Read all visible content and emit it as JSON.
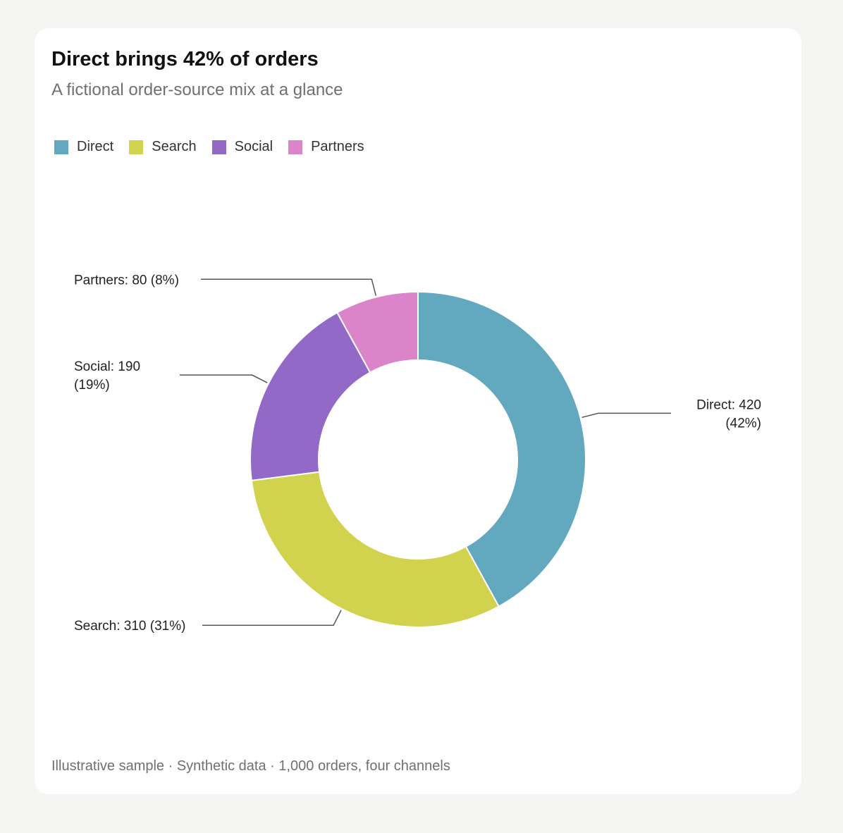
{
  "card": {
    "title": "Direct brings 42% of orders",
    "subtitle": "A fictional order-source mix at a glance",
    "footer": "Illustrative sample · Synthetic data · 1,000 orders, four channels"
  },
  "legend": [
    {
      "label": "Direct",
      "color": "#62a9c0"
    },
    {
      "label": "Search",
      "color": "#d1d34e"
    },
    {
      "label": "Social",
      "color": "#9369c8"
    },
    {
      "label": "Partners",
      "color": "#dc84c9"
    }
  ],
  "chart_data": {
    "type": "pie",
    "variant": "donut",
    "title": "Direct brings 42% of orders",
    "subtitle": "A fictional order-source mix at a glance",
    "legend_position": "top-left",
    "slices": [
      {
        "label": "Direct",
        "value": 420,
        "percent": 42,
        "color": "#62a9c0",
        "label_lines": [
          "Direct: 420",
          "(42%)"
        ]
      },
      {
        "label": "Search",
        "value": 310,
        "percent": 31,
        "color": "#d1d34e",
        "label_lines": [
          "Search: 310 (31%)"
        ]
      },
      {
        "label": "Social",
        "value": 190,
        "percent": 19,
        "color": "#9369c8",
        "label_lines": [
          "Social: 190",
          "(19%)"
        ]
      },
      {
        "label": "Partners",
        "value": 80,
        "percent": 8,
        "color": "#dc84c9",
        "label_lines": [
          "Partners: 80 (8%)"
        ]
      }
    ]
  }
}
